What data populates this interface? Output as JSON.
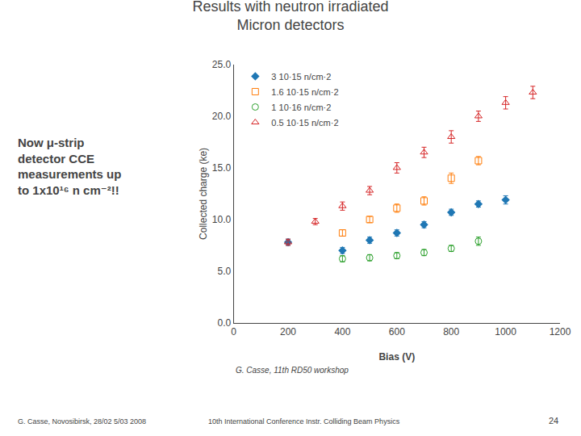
{
  "chart_data": {
    "type": "scatter",
    "title": "Results with neutron irradiated",
    "subtitle": "Micron detectors",
    "x_label": "Bias (V)",
    "y_label": "Collected charge (ke)",
    "xlim": [
      0,
      1200
    ],
    "ylim": [
      0.0,
      25.0
    ],
    "xticks": [
      0,
      200,
      400,
      600,
      800,
      1000,
      1200
    ],
    "yticks": [
      {
        "value": 0.0,
        "label": "0.0"
      },
      {
        "value": 5.0,
        "label": "5.0"
      },
      {
        "value": 10.0,
        "label": "10.0"
      },
      {
        "value": 15.0,
        "label": "15.0"
      },
      {
        "value": 20.0,
        "label": "20.0"
      },
      {
        "value": 25.0,
        "label": "25.0"
      }
    ],
    "grid": false,
    "legend": "upper left",
    "series": [
      {
        "name": "3 10·15 n/cm·2",
        "marker": "diamond",
        "x": [
          200,
          400,
          500,
          600,
          700,
          800,
          900,
          1000
        ],
        "values": [
          7.8,
          7.0,
          8.0,
          8.7,
          9.5,
          10.7,
          11.5,
          11.9
        ],
        "yerr": [
          0.3,
          0.3,
          0.3,
          0.3,
          0.3,
          0.3,
          0.3,
          0.4
        ]
      },
      {
        "name": "1.6 10·15 n/cm·2",
        "marker": "square-open",
        "x": [
          400,
          500,
          600,
          700,
          800,
          900
        ],
        "values": [
          8.7,
          10.0,
          11.1,
          11.8,
          14.0,
          15.7
        ],
        "yerr": [
          0.3,
          0.3,
          0.4,
          0.4,
          0.5,
          0.4
        ]
      },
      {
        "name": "1 10·16 n/cm·2",
        "marker": "circle-open",
        "x": [
          400,
          500,
          600,
          700,
          800,
          900
        ],
        "values": [
          6.2,
          6.3,
          6.5,
          6.8,
          7.2,
          7.9
        ],
        "yerr": [
          0.3,
          0.3,
          0.3,
          0.3,
          0.3,
          0.4
        ]
      },
      {
        "name": "0.5 10·15 n/cm·2",
        "marker": "triangle-up-open",
        "x": [
          200,
          300,
          400,
          500,
          600,
          700,
          800,
          900,
          1000,
          1100
        ],
        "values": [
          7.8,
          9.8,
          11.3,
          12.8,
          15.0,
          16.5,
          18.0,
          20.0,
          21.3,
          22.3
        ],
        "yerr": [
          0.3,
          0.3,
          0.4,
          0.4,
          0.5,
          0.5,
          0.6,
          0.5,
          0.6,
          0.6
        ]
      }
    ],
    "annotations": {
      "note": [
        "Now μ-strip",
        "detector CCE",
        "measurements up",
        "to 1x10¹⁶ n cm⁻²!!"
      ],
      "credit": "G. Casse, 11th RD50 workshop",
      "footer": [
        "G. Casse, Novosibirsk, 28/02 5/03 2008",
        "10th International Conference Instr. Colliding Beam Physics",
        "24"
      ]
    }
  }
}
